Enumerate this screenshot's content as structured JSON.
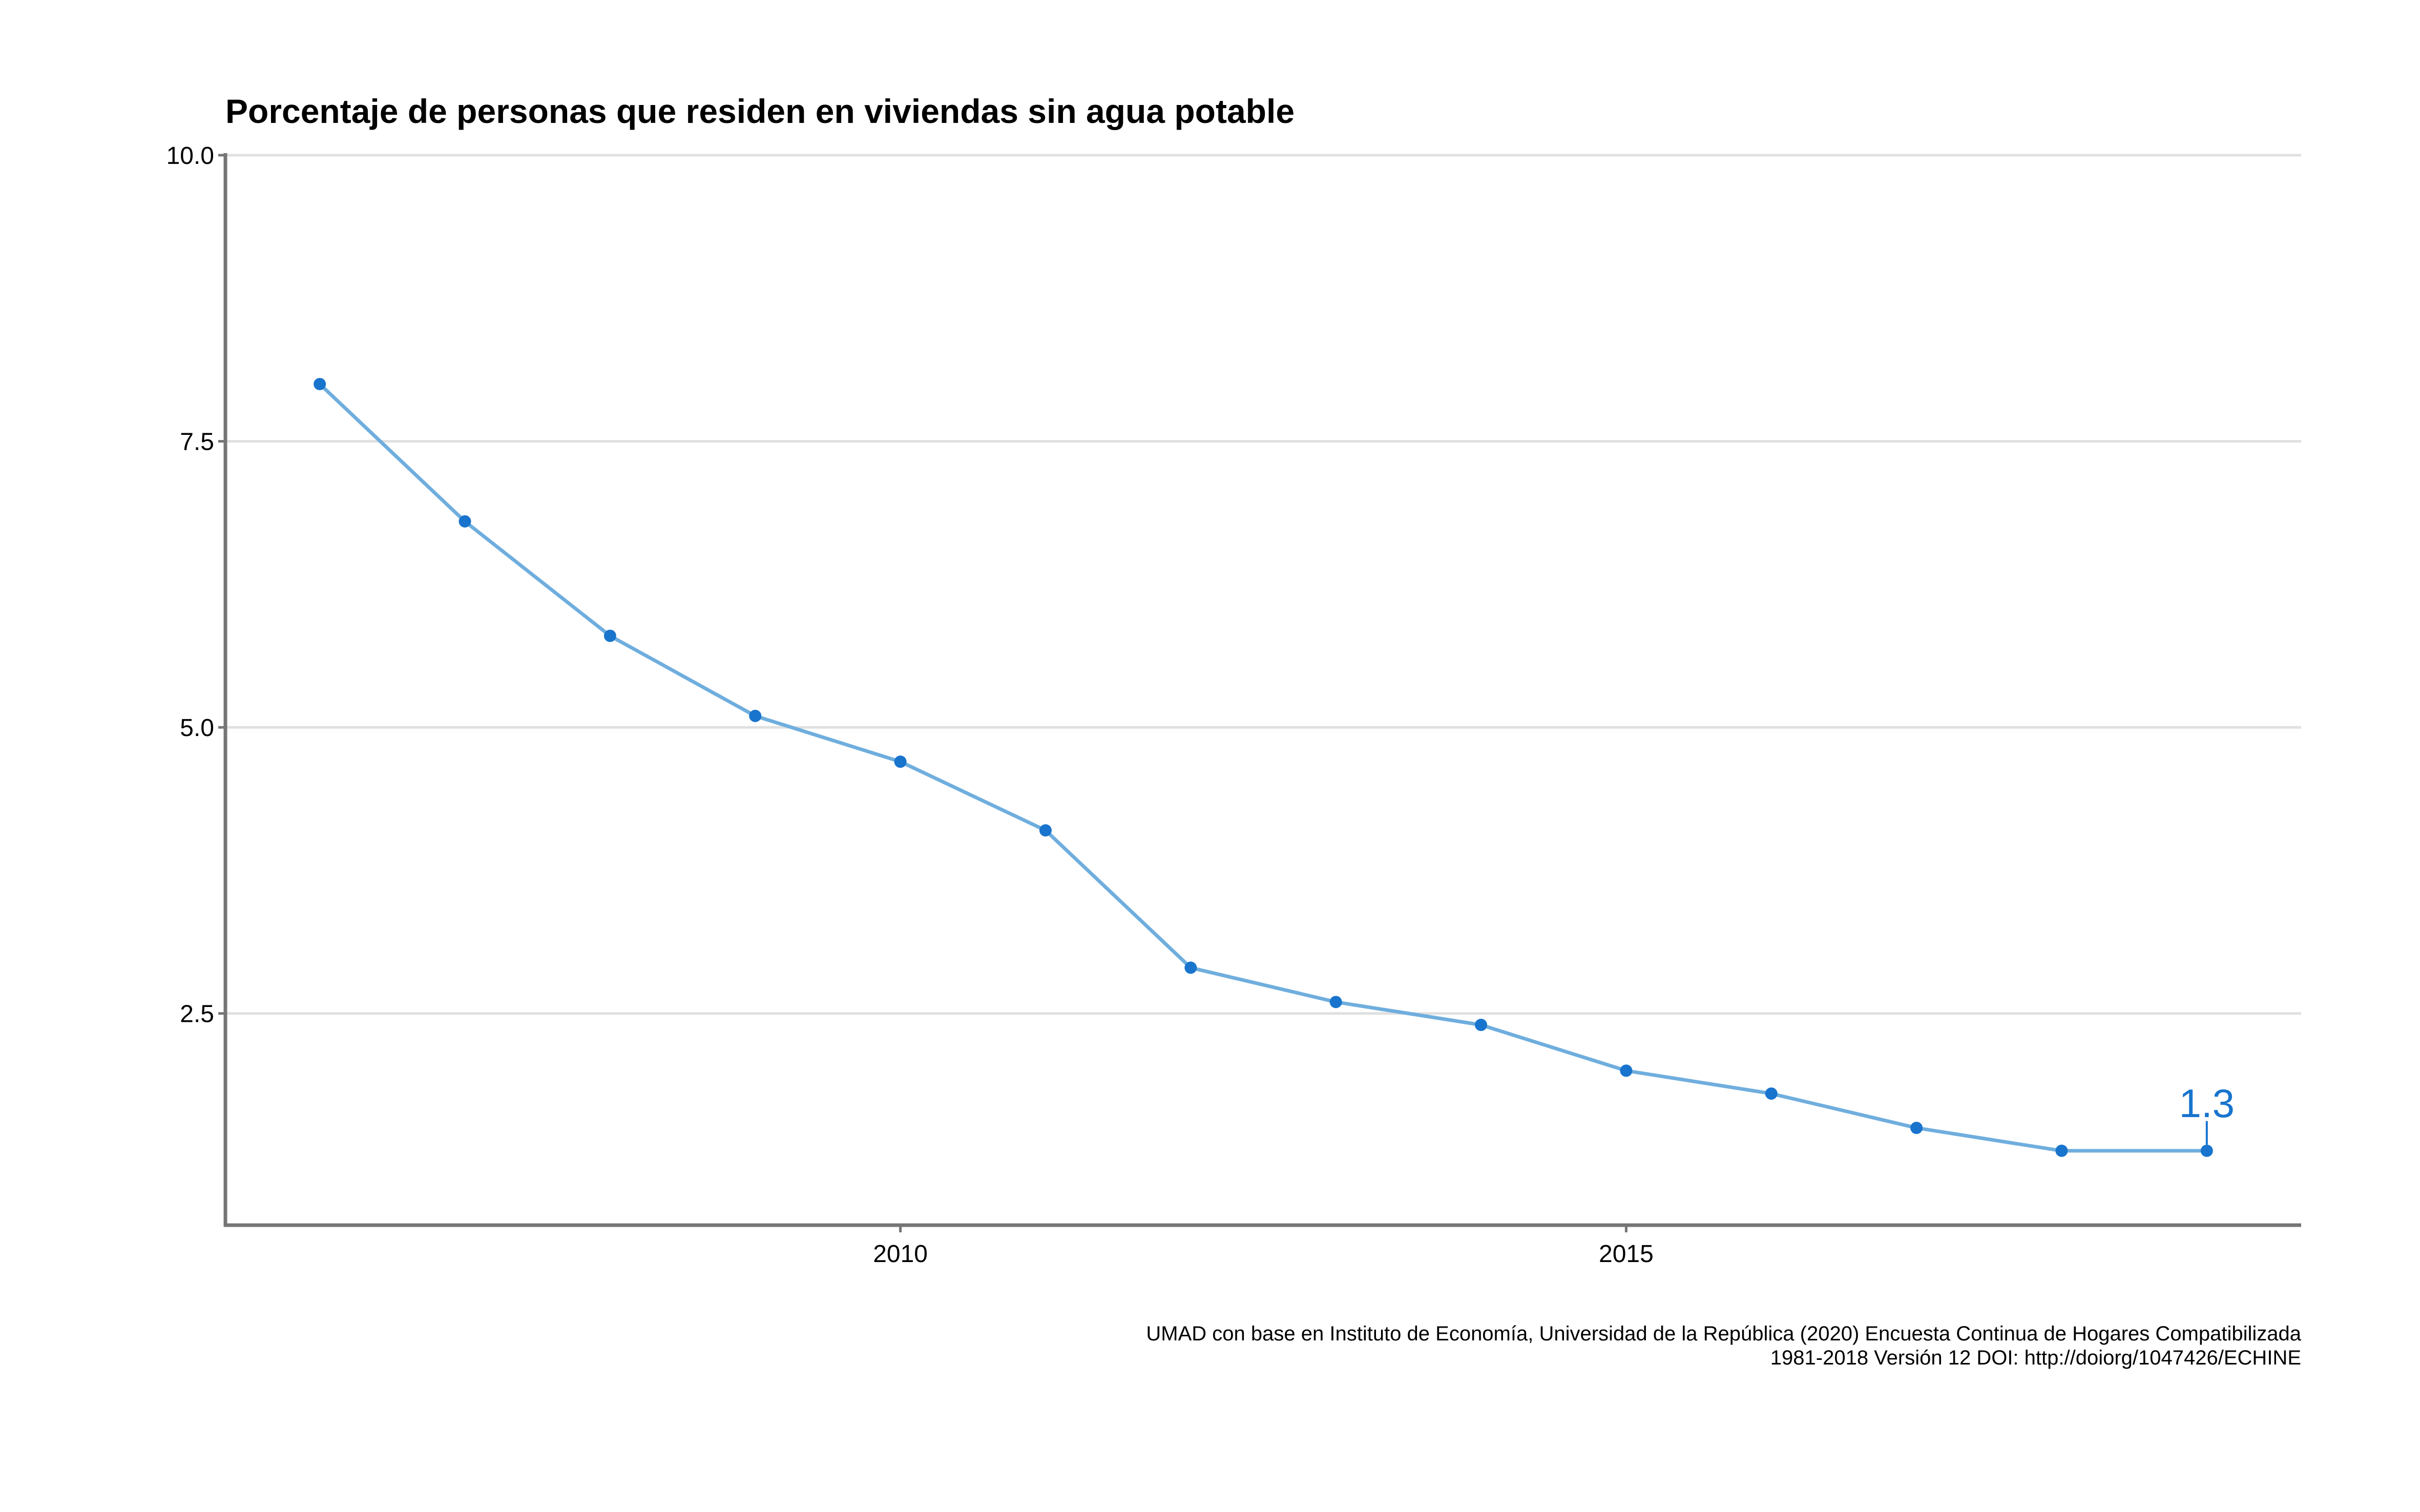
{
  "colors": {
    "line": "#6FAEDE",
    "point": "#1874CD",
    "grid": "#E0E0E0",
    "axis": "#757575"
  },
  "chart_data": {
    "type": "line",
    "title": "Porcentaje de personas que residen en viviendas sin agua potable",
    "xlabel": "",
    "ylabel": "",
    "x": [
      2006,
      2007,
      2008,
      2009,
      2010,
      2011,
      2012,
      2013,
      2014,
      2015,
      2016,
      2017,
      2018,
      2019
    ],
    "series": [
      {
        "values": [
          8.0,
          6.8,
          5.8,
          5.1,
          4.7,
          4.1,
          2.9,
          2.6,
          2.4,
          2.0,
          1.8,
          1.5,
          1.3,
          1.3
        ]
      }
    ],
    "xlim": [
      2005.35,
      2019.65
    ],
    "ylim": [
      0.65,
      10.0
    ],
    "x_ticks": [
      2010,
      2015
    ],
    "x_tick_labels": [
      "2010",
      "2015"
    ],
    "y_ticks": [
      2.5,
      5.0,
      7.5,
      10.0
    ],
    "y_tick_labels": [
      "2.5",
      "5.0",
      "7.5",
      "10.0"
    ],
    "grid": "horizontal",
    "legend": "none",
    "annotation": {
      "x": 2019,
      "y": 1.3,
      "text": "1.3"
    },
    "caption_lines": [
      "UMAD con base en Instituto de Economía, Universidad de la República (2020) Encuesta Continua de Hogares Compatibilizada",
      "1981-2018 Versión 12 DOI: http://doiorg/1047426/ECHINE"
    ]
  }
}
